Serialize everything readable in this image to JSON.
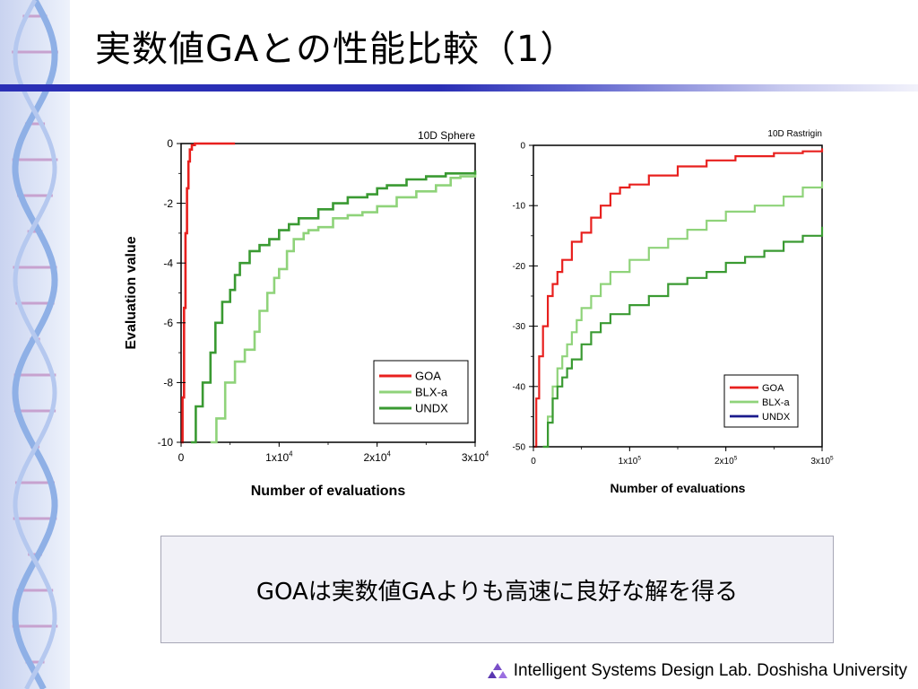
{
  "slide": {
    "title": "実数値GAとの性能比較（1）",
    "conclusion": "GOAは実数値GAよりも高速に良好な解を得る",
    "footer": "Intelligent Systems Design Lab. Doshisha University"
  },
  "colors": {
    "title_rule": "#2a2fb5",
    "GOA": "#e8201e",
    "BLX-a": "#8fd37a",
    "UNDX": "#3a9a32",
    "UNDX_legend": "#1a1a8c"
  },
  "chart_data": [
    {
      "type": "line",
      "title": "10D Sphere",
      "xlabel": "Number of evaluations",
      "ylabel": "Evaluation value",
      "xlim": [
        0,
        30000
      ],
      "ylim": [
        -10,
        0
      ],
      "xticks": [
        "0",
        "1x10⁴",
        "2x10⁴",
        "3x10⁴"
      ],
      "yticks": [
        "0",
        "-2",
        "-4",
        "-6",
        "-8",
        "-10"
      ],
      "grid": false,
      "legend_position": "bottom-right",
      "legend": [
        "GOA",
        "BLX-a",
        "UNDX"
      ],
      "series": [
        {
          "name": "GOA",
          "x": [
            0,
            150,
            300,
            450,
            600,
            750,
            900,
            1100,
            1400,
            2000,
            3500,
            5500
          ],
          "y": [
            -10,
            -8.5,
            -5.5,
            -3,
            -1.5,
            -0.6,
            -0.2,
            -0.05,
            0,
            0,
            0,
            0
          ]
        },
        {
          "name": "BLX-a",
          "x": [
            3000,
            3600,
            4500,
            5500,
            6500,
            7500,
            8000,
            8800,
            9500,
            10000,
            10800,
            11500,
            12500,
            13000,
            14000,
            15500,
            17000,
            18500,
            20000,
            22000,
            24000,
            26000,
            27500,
            28500,
            30000
          ],
          "y": [
            -10,
            -9.2,
            -8,
            -7.3,
            -6.9,
            -6.3,
            -5.6,
            -5,
            -4.5,
            -4.2,
            -3.6,
            -3.2,
            -3.0,
            -2.9,
            -2.8,
            -2.5,
            -2.4,
            -2.3,
            -2.1,
            -1.8,
            -1.6,
            -1.4,
            -1.15,
            -1.1,
            -1.0
          ]
        },
        {
          "name": "UNDX",
          "x": [
            1000,
            1500,
            2200,
            3000,
            3500,
            4200,
            5000,
            5500,
            6000,
            7000,
            8000,
            9000,
            10000,
            11000,
            12000,
            14000,
            15500,
            17000,
            19000,
            20000,
            21000,
            23000,
            25000,
            27000,
            30000
          ],
          "y": [
            -10,
            -8.8,
            -8.0,
            -7.0,
            -6.0,
            -5.3,
            -4.9,
            -4.4,
            -4.0,
            -3.6,
            -3.4,
            -3.2,
            -2.9,
            -2.7,
            -2.5,
            -2.2,
            -2.0,
            -1.8,
            -1.7,
            -1.5,
            -1.4,
            -1.2,
            -1.1,
            -1.0,
            -0.9
          ]
        }
      ]
    },
    {
      "type": "line",
      "title": "10D Rastrigin",
      "xlabel": "Number of evaluations",
      "ylabel": "",
      "xlim": [
        0,
        300000
      ],
      "ylim": [
        -50,
        0
      ],
      "xticks": [
        "0",
        "1x10⁵",
        "2x10⁵",
        "3x10⁵"
      ],
      "yticks": [
        "0",
        "-10",
        "-20",
        "-30",
        "-40",
        "-50"
      ],
      "grid": false,
      "legend_position": "bottom-right",
      "legend": [
        "GOA",
        "BLX-a",
        "UNDX"
      ],
      "series": [
        {
          "name": "GOA",
          "x": [
            1000,
            3000,
            6000,
            10000,
            15000,
            20000,
            25000,
            30000,
            40000,
            50000,
            60000,
            70000,
            80000,
            90000,
            100000,
            120000,
            150000,
            180000,
            210000,
            250000,
            280000,
            300000
          ],
          "y": [
            -50,
            -42,
            -35,
            -30,
            -25,
            -23,
            -21,
            -19,
            -16,
            -14.5,
            -12,
            -10,
            -8,
            -7,
            -6.5,
            -5,
            -3.5,
            -2.5,
            -1.8,
            -1.3,
            -1.0,
            -0.5
          ]
        },
        {
          "name": "BLX-a",
          "x": [
            10000,
            15000,
            20000,
            25000,
            30000,
            35000,
            40000,
            45000,
            50000,
            60000,
            70000,
            80000,
            100000,
            120000,
            140000,
            160000,
            180000,
            200000,
            230000,
            260000,
            280000,
            300000
          ],
          "y": [
            -50,
            -45,
            -40,
            -37,
            -35,
            -33,
            -31,
            -29,
            -27,
            -25,
            -23,
            -21,
            -19,
            -17,
            -15.5,
            -14,
            -12.5,
            -11,
            -10,
            -8.5,
            -7,
            -6
          ]
        },
        {
          "name": "UNDX",
          "x": [
            10000,
            15000,
            20000,
            25000,
            30000,
            35000,
            40000,
            50000,
            60000,
            70000,
            80000,
            100000,
            120000,
            140000,
            160000,
            180000,
            200000,
            220000,
            240000,
            260000,
            280000,
            300000
          ],
          "y": [
            -50,
            -46,
            -42,
            -40,
            -38.5,
            -37,
            -35.5,
            -33,
            -31,
            -29.5,
            -28,
            -26.5,
            -25,
            -23,
            -22,
            -21,
            -19.5,
            -18.5,
            -17.5,
            -16,
            -15,
            -13.5
          ]
        }
      ]
    }
  ]
}
